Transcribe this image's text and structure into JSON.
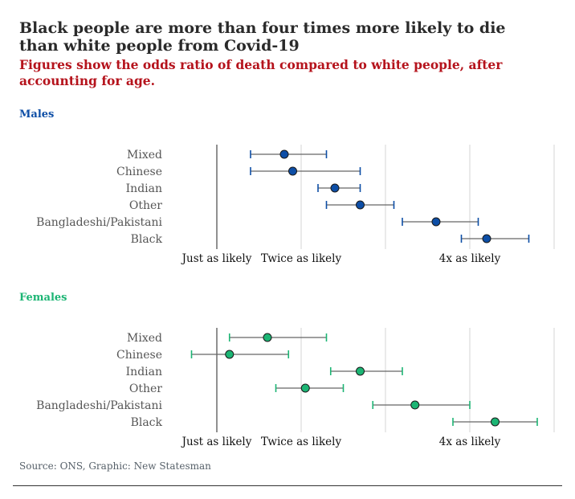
{
  "title": "Black people are more than four times more likely to die than white people from Covid-19",
  "subtitle": "Figures show the odds ratio of death compared to white people, after accounting for age.",
  "source": "Source: ONS, Graphic: New Statesman",
  "colors": {
    "males": "#0d4ea6",
    "females": "#1cb574",
    "axis": "#222222",
    "grid": "#d6d6d6",
    "whisker": "#666666"
  },
  "chart_data": [
    {
      "type": "scatter",
      "panel_title": "Males",
      "categories": [
        "Mixed",
        "Chinese",
        "Indian",
        "Other",
        "Bangladeshi/Pakistani",
        "Black"
      ],
      "estimate": [
        1.8,
        1.9,
        2.4,
        2.7,
        3.6,
        4.2
      ],
      "ci_low": [
        1.4,
        1.4,
        2.2,
        2.3,
        3.2,
        3.9
      ],
      "ci_high": [
        2.3,
        2.7,
        2.7,
        3.1,
        4.1,
        4.7
      ],
      "x_ticks": [
        {
          "value": 1,
          "label": "Just as likely"
        },
        {
          "value": 2,
          "label": "Twice as likely"
        },
        {
          "value": 4,
          "label": "4x as likely"
        }
      ],
      "gridlines": [
        1,
        2,
        3,
        4,
        5
      ],
      "xlim": [
        1,
        5
      ],
      "xlabel": "",
      "ylabel": ""
    },
    {
      "type": "scatter",
      "panel_title": "Females",
      "categories": [
        "Mixed",
        "Chinese",
        "Indian",
        "Other",
        "Bangladeshi/Pakistani",
        "Black"
      ],
      "estimate": [
        1.6,
        1.15,
        2.7,
        2.05,
        3.35,
        4.3
      ],
      "ci_low": [
        1.15,
        0.7,
        2.35,
        1.7,
        2.85,
        3.8
      ],
      "ci_high": [
        2.3,
        1.85,
        3.2,
        2.5,
        4.0,
        4.8
      ],
      "x_ticks": [
        {
          "value": 1,
          "label": "Just as likely"
        },
        {
          "value": 2,
          "label": "Twice as likely"
        },
        {
          "value": 4,
          "label": "4x as likely"
        }
      ],
      "gridlines": [
        1,
        2,
        3,
        4,
        5
      ],
      "xlim": [
        1,
        5
      ],
      "xlabel": "",
      "ylabel": ""
    }
  ]
}
